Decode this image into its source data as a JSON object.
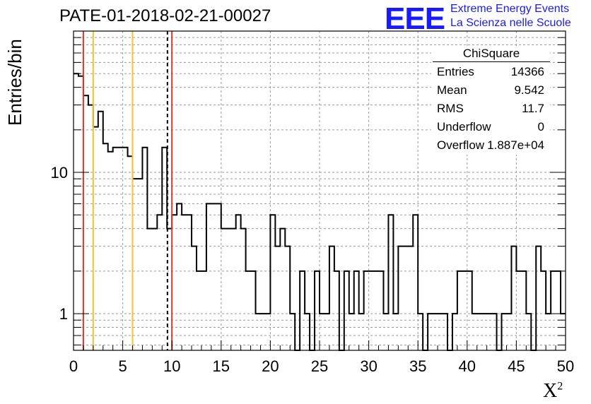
{
  "header": {
    "title": "PATE-01-2018-02-21-00027"
  },
  "logo": {
    "mark": "EEE",
    "line1": "Extreme Energy Events",
    "line2": "La Scienza nelle Scuole"
  },
  "stats_box": {
    "title": "ChiSquare",
    "rows": [
      {
        "label": "Entries",
        "value": "14366"
      },
      {
        "label": "Mean",
        "value": "9.542"
      },
      {
        "label": "RMS",
        "value": "11.7"
      },
      {
        "label": "Underflow",
        "value": "0"
      },
      {
        "label": "Overflow",
        "value": "1.887e+04"
      }
    ]
  },
  "chart_data": {
    "type": "bar",
    "title": "PATE-01-2018-02-21-00027",
    "xlabel": "X²",
    "ylabel": "Entries/bin",
    "xlim": [
      0,
      50
    ],
    "ylim": [
      0.55,
      100
    ],
    "yscale": "log",
    "grid": true,
    "bin_width": 0.5,
    "x_ticks": [
      "0",
      "5",
      "10",
      "15",
      "20",
      "25",
      "30",
      "35",
      "40",
      "45",
      "50"
    ],
    "y_ticks": [
      "1",
      "10"
    ],
    "values": [
      50,
      48,
      35,
      30,
      21,
      27,
      16,
      14,
      15,
      15,
      15,
      13,
      9,
      9,
      15,
      4,
      4,
      5,
      15,
      4,
      5,
      6,
      5,
      5,
      3,
      2,
      2,
      6,
      6,
      6,
      4,
      4,
      4,
      5,
      4,
      2,
      2,
      1,
      1,
      1,
      5,
      3,
      4,
      3,
      1,
      0.01,
      2,
      1,
      0.01,
      2,
      1,
      1,
      3,
      2,
      0.01,
      2,
      1,
      2,
      1,
      2,
      2,
      2,
      2,
      1,
      5,
      1,
      3,
      3,
      3,
      5,
      1,
      0.01,
      1,
      1,
      1,
      1,
      0.01,
      1,
      2,
      2,
      2,
      1,
      1,
      1,
      1,
      1,
      0.01,
      1,
      1,
      3,
      2,
      2,
      1,
      0.01,
      3,
      2,
      1,
      2,
      2,
      1
    ],
    "vlines": [
      {
        "x": 1,
        "color": "#e8322a",
        "style": "solid"
      },
      {
        "x": 2,
        "color": "#f2c230",
        "style": "solid"
      },
      {
        "x": 6,
        "color": "#f2c230",
        "style": "solid"
      },
      {
        "x": 9.542,
        "color": "#000000",
        "style": "dashed"
      },
      {
        "x": 10,
        "color": "#e8322a",
        "style": "solid"
      }
    ]
  }
}
